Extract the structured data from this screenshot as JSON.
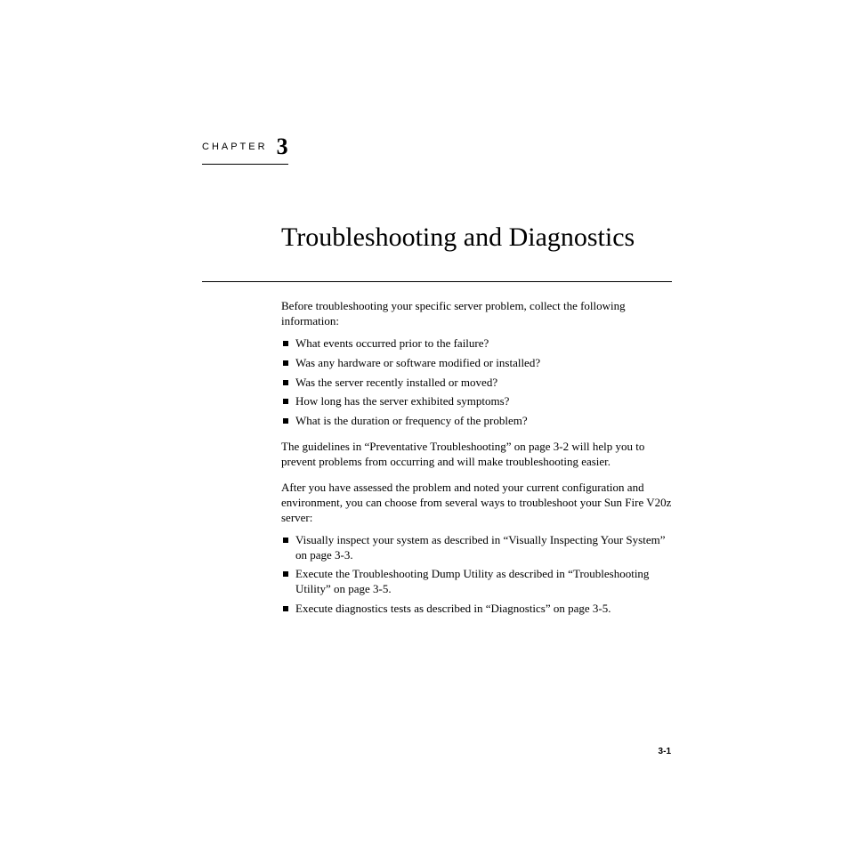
{
  "chapter": {
    "label": "CHAPTER",
    "number": "3"
  },
  "title": "Troubleshooting and Diagnostics",
  "intro": "Before troubleshooting your specific server problem, collect the following information:",
  "initial_bullets": [
    "What events occurred prior to the failure?",
    "Was any hardware or software modified or installed?",
    "Was the server recently installed or moved?",
    "How long has the server exhibited symptoms?",
    "What is the duration or frequency of the problem?"
  ],
  "para_guidelines": "The guidelines in “Preventative Troubleshooting” on page 3-2 will help you to prevent problems from occurring and will make troubleshooting easier.",
  "para_after": "After you have assessed the problem and noted your current configuration and environment, you can choose from several ways to troubleshoot your Sun Fire V20z server:",
  "action_bullets": [
    "Visually inspect your system as described in “Visually Inspecting Your System” on page 3-3.",
    "Execute the Troubleshooting Dump Utility as described in “Troubleshooting Utility” on page 3-5.",
    "Execute diagnostics tests as described in “Diagnostics” on page 3-5."
  ],
  "page_number": "3-1",
  "colors": {
    "background": "#ffffff",
    "text": "#000000",
    "rule": "#000000"
  },
  "typography": {
    "body_font": "Palatino",
    "body_size_pt": 10,
    "title_size_pt": 24,
    "chapter_label_size_pt": 8,
    "chapter_number_size_pt": 20
  }
}
